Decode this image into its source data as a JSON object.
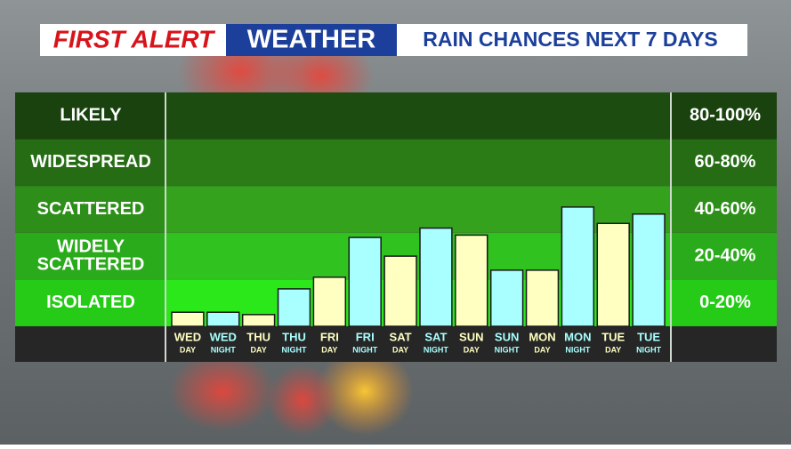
{
  "chart_data": {
    "type": "bar",
    "title": [
      "FIRST ALERT",
      "WEATHER",
      "RAIN CHANCES NEXT 7 DAYS"
    ],
    "categories": [
      "WED",
      "WED",
      "THU",
      "THU",
      "FRI",
      "FRI",
      "SAT",
      "SAT",
      "SUN",
      "SUN",
      "MON",
      "MON",
      "TUE",
      "TUE"
    ],
    "sublabels": [
      "DAY",
      "NIGHT",
      "DAY",
      "NIGHT",
      "DAY",
      "NIGHT",
      "DAY",
      "NIGHT",
      "DAY",
      "NIGHT",
      "DAY",
      "NIGHT",
      "DAY",
      "NIGHT"
    ],
    "values": [
      6,
      6,
      5,
      16,
      21,
      38,
      30,
      42,
      39,
      24,
      24,
      51,
      44,
      48
    ],
    "colors": [
      "#ffffc2",
      "#a9ffff",
      "#ffffc2",
      "#a9ffff",
      "#ffffc2",
      "#a9ffff",
      "#ffffc2",
      "#a9ffff",
      "#ffffc2",
      "#a9ffff",
      "#ffffc2",
      "#a9ffff",
      "#ffffc2",
      "#a9ffff"
    ],
    "ylim": [
      0,
      100
    ],
    "yticks": [
      0,
      20,
      40,
      60,
      80,
      100
    ],
    "bands": [
      {
        "label": [
          "ISOLATED"
        ],
        "range": "0-20%",
        "color": "#2be81b"
      },
      {
        "label": [
          "WIDELY",
          "SCATTERED"
        ],
        "range": "20-40%",
        "color": "#30c31f"
      },
      {
        "label": [
          "SCATTERED"
        ],
        "range": "40-60%",
        "color": "#34a21d"
      },
      {
        "label": [
          "WIDESPREAD"
        ],
        "range": "60-80%",
        "color": "#2b7b17"
      },
      {
        "label": [
          "LIKELY"
        ],
        "range": "80-100%",
        "color": "#1d4c10"
      }
    ]
  }
}
